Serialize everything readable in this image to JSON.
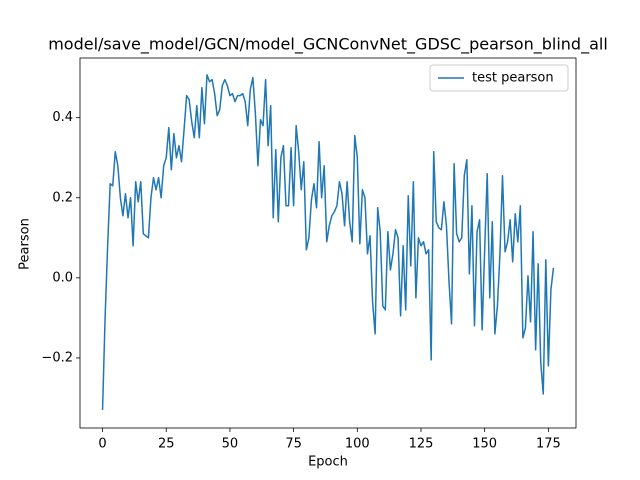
{
  "chart_data": {
    "type": "line",
    "title": "model/save_model/GCN/model_GCNConvNet_GDSC_pearson_blind_all",
    "x_label": "Epoch",
    "y_label": "Pearson",
    "x": [
      0,
      1,
      2,
      3,
      4,
      5,
      6,
      7,
      8,
      9,
      10,
      11,
      12,
      13,
      14,
      15,
      16,
      17,
      18,
      19,
      20,
      21,
      22,
      23,
      24,
      25,
      26,
      27,
      28,
      29,
      30,
      31,
      32,
      33,
      34,
      35,
      36,
      37,
      38,
      39,
      40,
      41,
      42,
      43,
      44,
      45,
      46,
      47,
      48,
      49,
      50,
      51,
      52,
      53,
      54,
      55,
      56,
      57,
      58,
      59,
      60,
      61,
      62,
      63,
      64,
      65,
      66,
      67,
      68,
      69,
      70,
      71,
      72,
      73,
      74,
      75,
      76,
      77,
      78,
      79,
      80,
      81,
      82,
      83,
      84,
      85,
      86,
      87,
      88,
      89,
      90,
      91,
      92,
      93,
      94,
      95,
      96,
      97,
      98,
      99,
      100,
      101,
      102,
      103,
      104,
      105,
      106,
      107,
      108,
      109,
      110,
      111,
      112,
      113,
      114,
      115,
      116,
      117,
      118,
      119,
      120,
      121,
      122,
      123,
      124,
      125,
      126,
      127,
      128,
      129,
      130,
      131,
      132,
      133,
      134,
      135,
      136,
      137,
      138,
      139,
      140,
      141,
      142,
      143,
      144,
      145,
      146,
      147,
      148,
      149,
      150,
      151,
      152,
      153,
      154,
      155,
      156,
      157,
      158,
      159,
      160,
      161,
      162,
      163,
      164,
      165,
      166,
      167,
      168,
      169,
      170,
      171,
      172,
      173,
      174,
      175,
      176,
      177
    ],
    "series": [
      {
        "name": "test pearson",
        "color": "#1f77b4",
        "values": [
          -0.33,
          -0.1,
          0.08,
          0.235,
          0.23,
          0.315,
          0.28,
          0.2,
          0.155,
          0.21,
          0.15,
          0.2,
          0.08,
          0.24,
          0.19,
          0.24,
          0.11,
          0.105,
          0.1,
          0.2,
          0.25,
          0.22,
          0.25,
          0.2,
          0.28,
          0.3,
          0.375,
          0.27,
          0.36,
          0.3,
          0.33,
          0.29,
          0.37,
          0.455,
          0.445,
          0.39,
          0.35,
          0.43,
          0.35,
          0.475,
          0.385,
          0.507,
          0.49,
          0.495,
          0.46,
          0.405,
          0.42,
          0.48,
          0.495,
          0.48,
          0.455,
          0.46,
          0.44,
          0.455,
          0.455,
          0.46,
          0.44,
          0.38,
          0.47,
          0.5,
          0.41,
          0.28,
          0.395,
          0.38,
          0.495,
          0.33,
          0.43,
          0.15,
          0.32,
          0.14,
          0.3,
          0.33,
          0.18,
          0.18,
          0.325,
          0.18,
          0.38,
          0.315,
          0.22,
          0.29,
          0.07,
          0.1,
          0.195,
          0.235,
          0.175,
          0.34,
          0.2,
          0.28,
          0.09,
          0.13,
          0.155,
          0.165,
          0.18,
          0.24,
          0.21,
          0.13,
          0.24,
          0.14,
          0.09,
          0.355,
          0.3,
          0.085,
          0.22,
          0.2,
          0.06,
          0.105,
          -0.06,
          -0.14,
          0.175,
          0.115,
          -0.07,
          -0.08,
          0.115,
          0.02,
          0.06,
          0.12,
          0.1,
          -0.095,
          0.08,
          -0.08,
          0.205,
          0.03,
          0.24,
          -0.05,
          0.1,
          0.08,
          0.09,
          0.06,
          0.07,
          -0.205,
          0.315,
          0.14,
          0.125,
          0.12,
          0.19,
          0.13,
          -0.01,
          -0.115,
          0.285,
          0.11,
          0.09,
          0.1,
          0.255,
          0.295,
          0.01,
          0.18,
          -0.12,
          0.115,
          0.145,
          -0.13,
          0.07,
          0.26,
          -0.05,
          0.14,
          -0.14,
          -0.07,
          0.06,
          0.255,
          0.065,
          0.09,
          0.145,
          0.04,
          0.16,
          0.09,
          0.18,
          -0.15,
          -0.125,
          0.005,
          -0.11,
          0.115,
          -0.18,
          0.035,
          -0.21,
          -0.29,
          0.045,
          -0.22,
          -0.03,
          0.025
        ]
      }
    ],
    "xlim": [
      -8.85,
      185.85
    ],
    "ylim": [
      -0.375,
      0.549
    ],
    "xticks": [
      0,
      25,
      50,
      75,
      100,
      125,
      150,
      175
    ],
    "yticks": [
      {
        "value": -0.2,
        "label": "−0.2"
      },
      {
        "value": 0,
        "label": "0.0"
      },
      {
        "value": 0.2,
        "label": "0.2"
      },
      {
        "value": 0.4,
        "label": "0.4"
      }
    ],
    "legend": "upper right"
  }
}
